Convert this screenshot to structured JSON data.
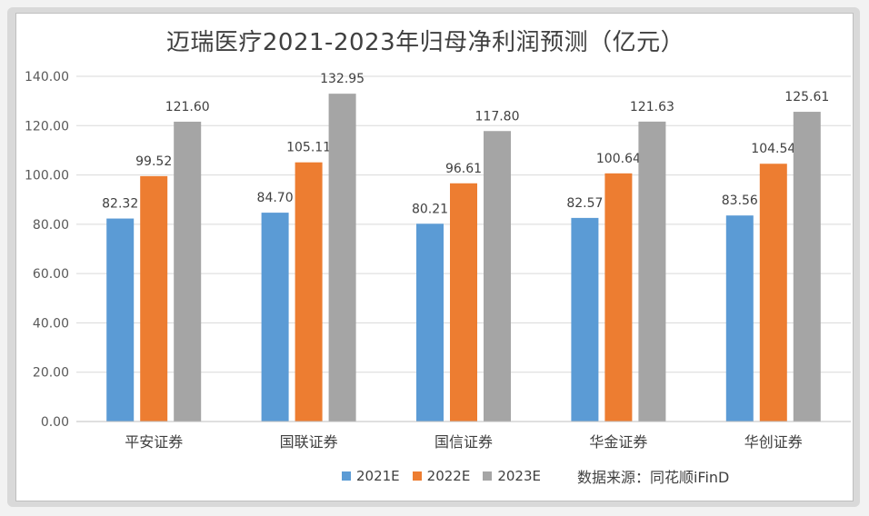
{
  "chart_data": {
    "type": "bar",
    "title": "迈瑞医疗2021-2023年归母净利润预测（亿元）",
    "categories": [
      "平安证券",
      "国联证券",
      "国信证券",
      "华金证券",
      "华创证券"
    ],
    "series": [
      {
        "name": "2021E",
        "color": "#5b9bd5",
        "values": [
          82.32,
          84.7,
          80.21,
          82.57,
          83.56
        ]
      },
      {
        "name": "2022E",
        "color": "#ed7d31",
        "values": [
          99.52,
          105.11,
          96.61,
          100.64,
          104.54
        ]
      },
      {
        "name": "2023E",
        "color": "#a5a5a5",
        "values": [
          121.6,
          132.95,
          117.8,
          121.63,
          125.61
        ]
      }
    ],
    "ylim": [
      0,
      140
    ],
    "yticks": [
      "0.00",
      "20.00",
      "40.00",
      "60.00",
      "80.00",
      "100.00",
      "120.00",
      "140.00"
    ],
    "grid": true,
    "legend_position": "bottom",
    "source_note": "数据来源：同花顺iFinD"
  }
}
